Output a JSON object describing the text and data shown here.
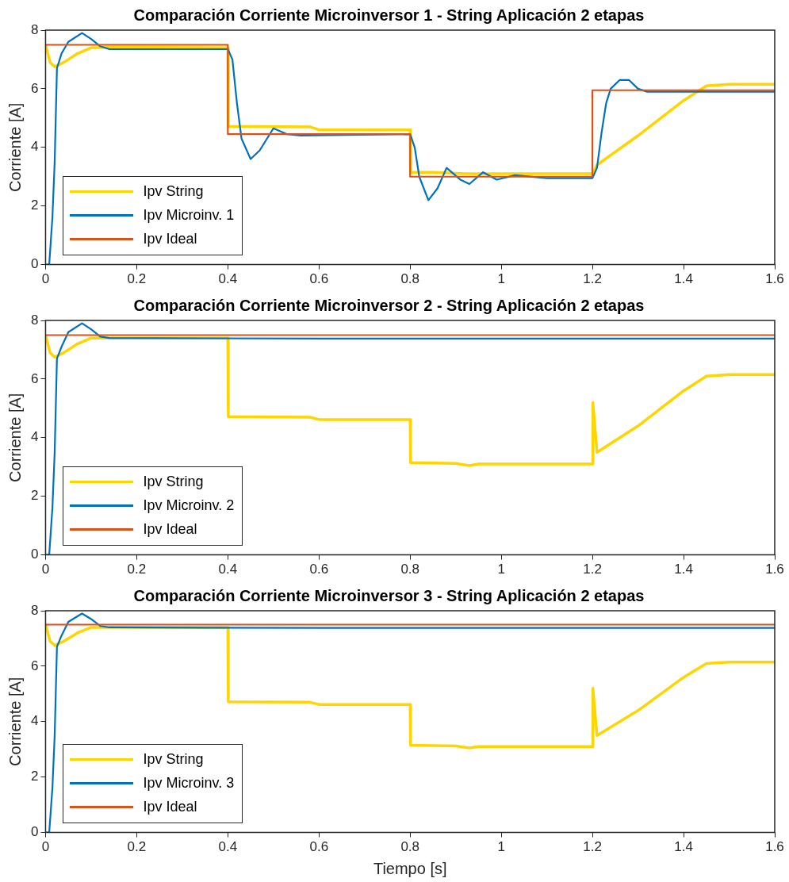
{
  "chart_data": [
    {
      "type": "line",
      "title": "Comparación Corriente Microinversor 1 - String Aplicación 2 etapas",
      "ylabel": "Corriente [A]",
      "xlim": [
        0,
        1.6
      ],
      "xticks": [
        0,
        0.2,
        0.4,
        0.6,
        0.8,
        1,
        1.2,
        1.4,
        1.6
      ],
      "ylim": [
        0,
        8
      ],
      "yticks": [
        0,
        2,
        4,
        6,
        8
      ],
      "grid": false,
      "legend": "bottom left",
      "series": [
        {
          "name": "Ipv String",
          "color": "#ffd500",
          "x": [
            0,
            0.01,
            0.02,
            0.04,
            0.07,
            0.1,
            0.15,
            0.4,
            0.401,
            0.58,
            0.6,
            0.8,
            0.801,
            0.85,
            0.92,
            1.2,
            1.21,
            1.3,
            1.4,
            1.45,
            1.5,
            1.6
          ],
          "values": [
            7.5,
            6.9,
            6.75,
            6.9,
            7.2,
            7.4,
            7.42,
            7.4,
            4.72,
            4.7,
            4.6,
            4.6,
            3.15,
            3.15,
            3.1,
            3.1,
            3.4,
            4.4,
            5.6,
            6.1,
            6.15,
            6.15
          ]
        },
        {
          "name": "Ipv Microinv. 1",
          "color": "#0072bd",
          "x": [
            0,
            0.008,
            0.015,
            0.02,
            0.025,
            0.035,
            0.05,
            0.08,
            0.1,
            0.12,
            0.14,
            0.4,
            0.41,
            0.42,
            0.43,
            0.45,
            0.47,
            0.5,
            0.53,
            0.56,
            0.8,
            0.81,
            0.82,
            0.84,
            0.86,
            0.88,
            0.91,
            0.93,
            0.96,
            0.99,
            1.03,
            1.1,
            1.2,
            1.21,
            1.22,
            1.23,
            1.24,
            1.26,
            1.28,
            1.3,
            1.32,
            1.6
          ],
          "values": [
            0,
            0,
            1.6,
            3.5,
            6.7,
            7.2,
            7.6,
            7.9,
            7.7,
            7.45,
            7.35,
            7.35,
            7,
            5.5,
            4.3,
            3.6,
            3.9,
            4.65,
            4.45,
            4.4,
            4.45,
            4,
            3,
            2.2,
            2.6,
            3.3,
            2.9,
            2.75,
            3.15,
            2.9,
            3.05,
            2.95,
            2.95,
            3.3,
            4.5,
            5.5,
            6,
            6.3,
            6.3,
            6,
            5.9,
            5.9
          ]
        },
        {
          "name": "Ipv Ideal",
          "color": "#d95319",
          "x": [
            0,
            0.4,
            0.4,
            0.8,
            0.8,
            1.2,
            1.2,
            1.6
          ],
          "values": [
            7.5,
            7.5,
            4.45,
            4.45,
            3,
            3,
            5.95,
            5.95
          ]
        }
      ]
    },
    {
      "type": "line",
      "title": "Comparación Corriente Microinversor 2 - String Aplicación 2 etapas",
      "ylabel": "Corriente [A]",
      "xlim": [
        0,
        1.6
      ],
      "xticks": [
        0,
        0.2,
        0.4,
        0.6,
        0.8,
        1,
        1.2,
        1.4,
        1.6
      ],
      "ylim": [
        0,
        8
      ],
      "yticks": [
        0,
        2,
        4,
        6,
        8
      ],
      "grid": false,
      "legend": "bottom left",
      "series": [
        {
          "name": "Ipv String",
          "color": "#ffd500",
          "x": [
            0,
            0.01,
            0.02,
            0.04,
            0.07,
            0.1,
            0.4,
            0.401,
            0.58,
            0.6,
            0.8,
            0.801,
            0.9,
            0.93,
            0.95,
            1.2,
            1.201,
            1.21,
            1.3,
            1.4,
            1.45,
            1.5,
            1.6
          ],
          "values": [
            7.5,
            6.9,
            6.75,
            6.9,
            7.2,
            7.4,
            7.4,
            4.72,
            4.7,
            4.62,
            4.62,
            3.15,
            3.12,
            3.05,
            3.1,
            3.1,
            5.2,
            3.5,
            4.4,
            5.6,
            6.1,
            6.15,
            6.15
          ]
        },
        {
          "name": "Ipv Microinv. 2",
          "color": "#0072bd",
          "x": [
            0,
            0.008,
            0.015,
            0.02,
            0.025,
            0.035,
            0.05,
            0.08,
            0.1,
            0.12,
            0.14,
            0.6,
            1,
            1.6
          ],
          "values": [
            0,
            0,
            1.6,
            3.5,
            6.7,
            7.1,
            7.6,
            7.9,
            7.7,
            7.45,
            7.4,
            7.38,
            7.38,
            7.38
          ]
        },
        {
          "name": "Ipv Ideal",
          "color": "#d95319",
          "x": [
            0,
            1.6
          ],
          "values": [
            7.5,
            7.5
          ]
        }
      ]
    },
    {
      "type": "line",
      "title": "Comparación Corriente Microinversor 3 - String Aplicación 2 etapas",
      "xlabel": "Tiempo [s]",
      "ylabel": "Corriente [A]",
      "xlim": [
        0,
        1.6
      ],
      "xticks": [
        0,
        0.2,
        0.4,
        0.6,
        0.8,
        1,
        1.2,
        1.4,
        1.6
      ],
      "ylim": [
        0,
        8
      ],
      "yticks": [
        0,
        2,
        4,
        6,
        8
      ],
      "grid": false,
      "legend": "bottom left",
      "series": [
        {
          "name": "Ipv String",
          "color": "#ffd500",
          "x": [
            0,
            0.01,
            0.02,
            0.04,
            0.07,
            0.1,
            0.4,
            0.401,
            0.58,
            0.6,
            0.8,
            0.801,
            0.9,
            0.93,
            0.95,
            1.2,
            1.201,
            1.21,
            1.3,
            1.4,
            1.45,
            1.5,
            1.6
          ],
          "values": [
            7.5,
            6.9,
            6.75,
            6.9,
            7.2,
            7.4,
            7.4,
            4.72,
            4.7,
            4.62,
            4.62,
            3.15,
            3.12,
            3.05,
            3.1,
            3.1,
            5.2,
            3.5,
            4.4,
            5.6,
            6.1,
            6.15,
            6.15
          ]
        },
        {
          "name": "Ipv Microinv. 3",
          "color": "#0072bd",
          "x": [
            0,
            0.008,
            0.015,
            0.02,
            0.025,
            0.035,
            0.05,
            0.08,
            0.1,
            0.12,
            0.14,
            0.6,
            1,
            1.6
          ],
          "values": [
            0,
            0,
            1.6,
            3.5,
            6.7,
            7.1,
            7.6,
            7.9,
            7.7,
            7.45,
            7.4,
            7.38,
            7.38,
            7.38
          ]
        },
        {
          "name": "Ipv Ideal",
          "color": "#d95319",
          "x": [
            0,
            1.6
          ],
          "values": [
            7.5,
            7.5
          ]
        }
      ]
    }
  ]
}
